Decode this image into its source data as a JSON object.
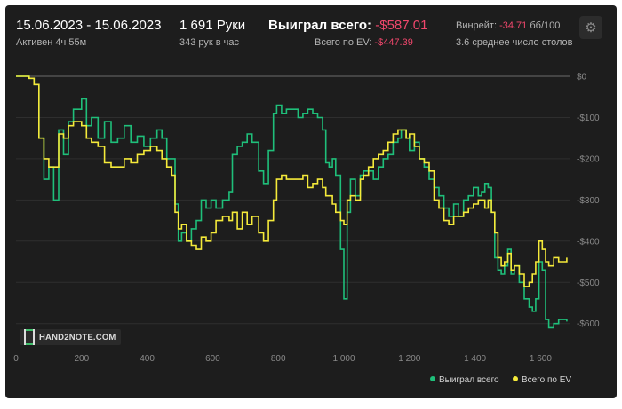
{
  "header": {
    "date_range": "15.06.2023 - 15.06.2023",
    "active_label": "Активен 4ч 55м",
    "hands": "1 691 Руки",
    "hands_per_hour": "343 рук в час",
    "won_total_label": "Выиграл всего:",
    "won_total_value": "-$587.01",
    "ev_total_label": "Всего по EV:",
    "ev_total_value": "-$447.39",
    "winrate_label": "Винрейт:",
    "winrate_value": "-34.71",
    "winrate_unit": "бб/100",
    "avg_tables": "3.6 среднее число столов"
  },
  "logo_text": "HAND2NOTE.COM",
  "icons": {
    "settings": "gear-icon"
  },
  "colors": {
    "won": "#1fbf7a",
    "ev": "#f5ea3a",
    "negative": "#f0476c"
  },
  "chart_data": {
    "type": "line",
    "xlim": [
      0,
      1691
    ],
    "ylim": [
      -620,
      0
    ],
    "x_ticks": [
      0,
      200,
      400,
      600,
      800,
      1000,
      1200,
      1400,
      1600
    ],
    "x_tick_labels": [
      "0",
      "200",
      "400",
      "600",
      "800",
      "1 000",
      "1 200",
      "1 400",
      "1 600"
    ],
    "y_ticks": [
      0,
      -100,
      -200,
      -300,
      -400,
      -500,
      -600
    ],
    "y_tick_labels": [
      "$0",
      "-$100",
      "-$200",
      "-$300",
      "-$400",
      "-$500",
      "-$600"
    ],
    "grid": "horizontal",
    "legend_position": "bottom-right",
    "series": [
      {
        "name": "Выиграл всего",
        "color": "#1fbf7a",
        "points": [
          [
            0,
            0
          ],
          [
            40,
            -5
          ],
          [
            55,
            -20
          ],
          [
            70,
            -150
          ],
          [
            85,
            -250
          ],
          [
            100,
            -220
          ],
          [
            115,
            -300
          ],
          [
            130,
            -130
          ],
          [
            145,
            -190
          ],
          [
            160,
            -110
          ],
          [
            175,
            -80
          ],
          [
            190,
            -80
          ],
          [
            200,
            -55
          ],
          [
            215,
            -120
          ],
          [
            230,
            -100
          ],
          [
            250,
            -150
          ],
          [
            270,
            -110
          ],
          [
            290,
            -160
          ],
          [
            310,
            -150
          ],
          [
            330,
            -120
          ],
          [
            350,
            -160
          ],
          [
            370,
            -145
          ],
          [
            390,
            -170
          ],
          [
            410,
            -150
          ],
          [
            430,
            -130
          ],
          [
            445,
            -150
          ],
          [
            460,
            -200
          ],
          [
            475,
            -200
          ],
          [
            485,
            -310
          ],
          [
            495,
            -400
          ],
          [
            505,
            -380
          ],
          [
            520,
            -400
          ],
          [
            535,
            -370
          ],
          [
            550,
            -350
          ],
          [
            565,
            -300
          ],
          [
            580,
            -320
          ],
          [
            595,
            -300
          ],
          [
            610,
            -320
          ],
          [
            630,
            -300
          ],
          [
            650,
            -280
          ],
          [
            660,
            -190
          ],
          [
            675,
            -170
          ],
          [
            690,
            -160
          ],
          [
            705,
            -140
          ],
          [
            720,
            -160
          ],
          [
            740,
            -230
          ],
          [
            755,
            -260
          ],
          [
            770,
            -180
          ],
          [
            785,
            -90
          ],
          [
            795,
            -70
          ],
          [
            810,
            -90
          ],
          [
            825,
            -80
          ],
          [
            840,
            -80
          ],
          [
            860,
            -100
          ],
          [
            875,
            -90
          ],
          [
            890,
            -80
          ],
          [
            905,
            -90
          ],
          [
            920,
            -100
          ],
          [
            935,
            -130
          ],
          [
            945,
            -210
          ],
          [
            955,
            -220
          ],
          [
            965,
            -200
          ],
          [
            975,
            -240
          ],
          [
            990,
            -420
          ],
          [
            1000,
            -540
          ],
          [
            1010,
            -330
          ],
          [
            1020,
            -250
          ],
          [
            1035,
            -290
          ],
          [
            1050,
            -240
          ],
          [
            1060,
            -230
          ],
          [
            1075,
            -230
          ],
          [
            1090,
            -250
          ],
          [
            1105,
            -220
          ],
          [
            1120,
            -200
          ],
          [
            1135,
            -190
          ],
          [
            1150,
            -160
          ],
          [
            1165,
            -150
          ],
          [
            1175,
            -130
          ],
          [
            1190,
            -150
          ],
          [
            1200,
            -180
          ],
          [
            1215,
            -160
          ],
          [
            1230,
            -200
          ],
          [
            1245,
            -220
          ],
          [
            1260,
            -250
          ],
          [
            1275,
            -270
          ],
          [
            1290,
            -290
          ],
          [
            1305,
            -320
          ],
          [
            1320,
            -340
          ],
          [
            1335,
            -310
          ],
          [
            1350,
            -340
          ],
          [
            1365,
            -300
          ],
          [
            1380,
            -290
          ],
          [
            1395,
            -270
          ],
          [
            1410,
            -290
          ],
          [
            1420,
            -280
          ],
          [
            1430,
            -260
          ],
          [
            1440,
            -270
          ],
          [
            1450,
            -330
          ],
          [
            1460,
            -440
          ],
          [
            1470,
            -470
          ],
          [
            1480,
            -480
          ],
          [
            1490,
            -460
          ],
          [
            1500,
            -420
          ],
          [
            1510,
            -480
          ],
          [
            1520,
            -460
          ],
          [
            1535,
            -500
          ],
          [
            1550,
            -540
          ],
          [
            1565,
            -560
          ],
          [
            1575,
            -570
          ],
          [
            1585,
            -540
          ],
          [
            1595,
            -450
          ],
          [
            1605,
            -470
          ],
          [
            1615,
            -590
          ],
          [
            1625,
            -610
          ],
          [
            1640,
            -600
          ],
          [
            1655,
            -590
          ],
          [
            1670,
            -590
          ],
          [
            1680,
            -595
          ]
        ]
      },
      {
        "name": "Всего по EV",
        "color": "#f5ea3a",
        "points": [
          [
            0,
            0
          ],
          [
            40,
            -5
          ],
          [
            55,
            -20
          ],
          [
            70,
            -150
          ],
          [
            85,
            -200
          ],
          [
            100,
            -220
          ],
          [
            115,
            -220
          ],
          [
            130,
            -140
          ],
          [
            145,
            -150
          ],
          [
            160,
            -120
          ],
          [
            175,
            -110
          ],
          [
            190,
            -110
          ],
          [
            200,
            -120
          ],
          [
            215,
            -150
          ],
          [
            230,
            -160
          ],
          [
            250,
            -170
          ],
          [
            270,
            -210
          ],
          [
            290,
            -220
          ],
          [
            310,
            -220
          ],
          [
            330,
            -200
          ],
          [
            350,
            -210
          ],
          [
            370,
            -190
          ],
          [
            390,
            -180
          ],
          [
            410,
            -170
          ],
          [
            430,
            -180
          ],
          [
            445,
            -200
          ],
          [
            460,
            -220
          ],
          [
            475,
            -240
          ],
          [
            485,
            -330
          ],
          [
            495,
            -370
          ],
          [
            505,
            -360
          ],
          [
            520,
            -400
          ],
          [
            535,
            -410
          ],
          [
            550,
            -420
          ],
          [
            565,
            -390
          ],
          [
            580,
            -400
          ],
          [
            595,
            -380
          ],
          [
            610,
            -350
          ],
          [
            630,
            -340
          ],
          [
            650,
            -350
          ],
          [
            660,
            -330
          ],
          [
            675,
            -370
          ],
          [
            690,
            -330
          ],
          [
            705,
            -360
          ],
          [
            720,
            -340
          ],
          [
            740,
            -380
          ],
          [
            755,
            -400
          ],
          [
            770,
            -350
          ],
          [
            785,
            -300
          ],
          [
            795,
            -250
          ],
          [
            810,
            -240
          ],
          [
            825,
            -250
          ],
          [
            840,
            -250
          ],
          [
            860,
            -250
          ],
          [
            875,
            -240
          ],
          [
            890,
            -270
          ],
          [
            905,
            -260
          ],
          [
            920,
            -250
          ],
          [
            935,
            -270
          ],
          [
            945,
            -290
          ],
          [
            955,
            -290
          ],
          [
            965,
            -310
          ],
          [
            975,
            -330
          ],
          [
            990,
            -350
          ],
          [
            1000,
            -360
          ],
          [
            1010,
            -300
          ],
          [
            1020,
            -290
          ],
          [
            1035,
            -300
          ],
          [
            1050,
            -250
          ],
          [
            1060,
            -240
          ],
          [
            1075,
            -220
          ],
          [
            1090,
            -200
          ],
          [
            1105,
            -190
          ],
          [
            1120,
            -180
          ],
          [
            1135,
            -160
          ],
          [
            1150,
            -140
          ],
          [
            1165,
            -130
          ],
          [
            1175,
            -130
          ],
          [
            1190,
            -150
          ],
          [
            1200,
            -140
          ],
          [
            1215,
            -170
          ],
          [
            1230,
            -200
          ],
          [
            1245,
            -210
          ],
          [
            1260,
            -230
          ],
          [
            1275,
            -300
          ],
          [
            1290,
            -320
          ],
          [
            1305,
            -350
          ],
          [
            1320,
            -360
          ],
          [
            1335,
            -340
          ],
          [
            1350,
            -340
          ],
          [
            1365,
            -330
          ],
          [
            1380,
            -320
          ],
          [
            1395,
            -310
          ],
          [
            1410,
            -300
          ],
          [
            1420,
            -300
          ],
          [
            1430,
            -320
          ],
          [
            1440,
            -300
          ],
          [
            1450,
            -330
          ],
          [
            1460,
            -380
          ],
          [
            1470,
            -440
          ],
          [
            1480,
            -460
          ],
          [
            1490,
            -450
          ],
          [
            1500,
            -430
          ],
          [
            1510,
            -470
          ],
          [
            1520,
            -460
          ],
          [
            1535,
            -480
          ],
          [
            1550,
            -510
          ],
          [
            1565,
            -500
          ],
          [
            1575,
            -480
          ],
          [
            1585,
            -450
          ],
          [
            1595,
            -400
          ],
          [
            1605,
            -420
          ],
          [
            1615,
            -450
          ],
          [
            1625,
            -460
          ],
          [
            1640,
            -440
          ],
          [
            1655,
            -450
          ],
          [
            1670,
            -450
          ],
          [
            1680,
            -440
          ]
        ]
      }
    ]
  }
}
